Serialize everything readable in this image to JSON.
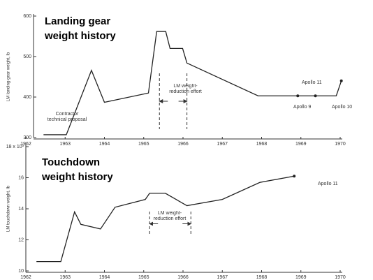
{
  "chart_data": [
    {
      "type": "line",
      "title": "Landing gear weight history",
      "ylabel": "LM landing-gear weight, lb",
      "x": [
        1962.45,
        1963.03,
        1963.67,
        1964.0,
        1965.12,
        1965.33,
        1965.56,
        1965.67,
        1965.99,
        1966.1,
        1967.91,
        1968.92,
        1969.37,
        1969.9,
        1970.03
      ],
      "series": [
        {
          "color": "#222",
          "values": [
            307,
            307,
            466,
            387,
            410,
            562,
            562,
            520,
            520,
            484,
            403,
            403,
            403,
            403,
            440
          ]
        }
      ],
      "xlim": [
        1962,
        1970
      ],
      "xticks": [
        1962,
        1963,
        1964,
        1965,
        1966,
        1967,
        1968,
        1969,
        1970
      ],
      "ylim": [
        300,
        600
      ],
      "yticks": [
        300,
        400,
        500,
        600
      ],
      "annotations": [
        "Contractor technical proposal",
        "LM weight-reduction effort",
        "Apollo 9",
        "Apollo 10",
        "Apollo 11"
      ]
    },
    {
      "type": "line",
      "title": "Touchdown weight history",
      "ylabel": "LM touchdown weight, lb",
      "x": [
        1962.27,
        1962.89,
        1963.24,
        1963.4,
        1963.9,
        1964.27,
        1965.04,
        1965.15,
        1965.55,
        1966.1,
        1967.0,
        1967.96,
        1968.83
      ],
      "series": [
        {
          "color": "#222",
          "values": [
            10.6,
            10.6,
            13.8,
            13.0,
            12.7,
            14.1,
            14.6,
            15.0,
            15.0,
            14.2,
            14.6,
            15.7,
            16.1
          ]
        }
      ],
      "xlim": [
        1962,
        1970
      ],
      "xticks": [
        1962,
        1963,
        1964,
        1965,
        1966,
        1967,
        1968,
        1969,
        1970
      ],
      "ylim": [
        10,
        18
      ],
      "yticks": [
        10,
        12,
        14,
        16,
        {
          "value": 18,
          "label": "18 x 10³"
        }
      ],
      "annotations": [
        "LM weight-reduction effort",
        "Apollo 11"
      ]
    }
  ]
}
